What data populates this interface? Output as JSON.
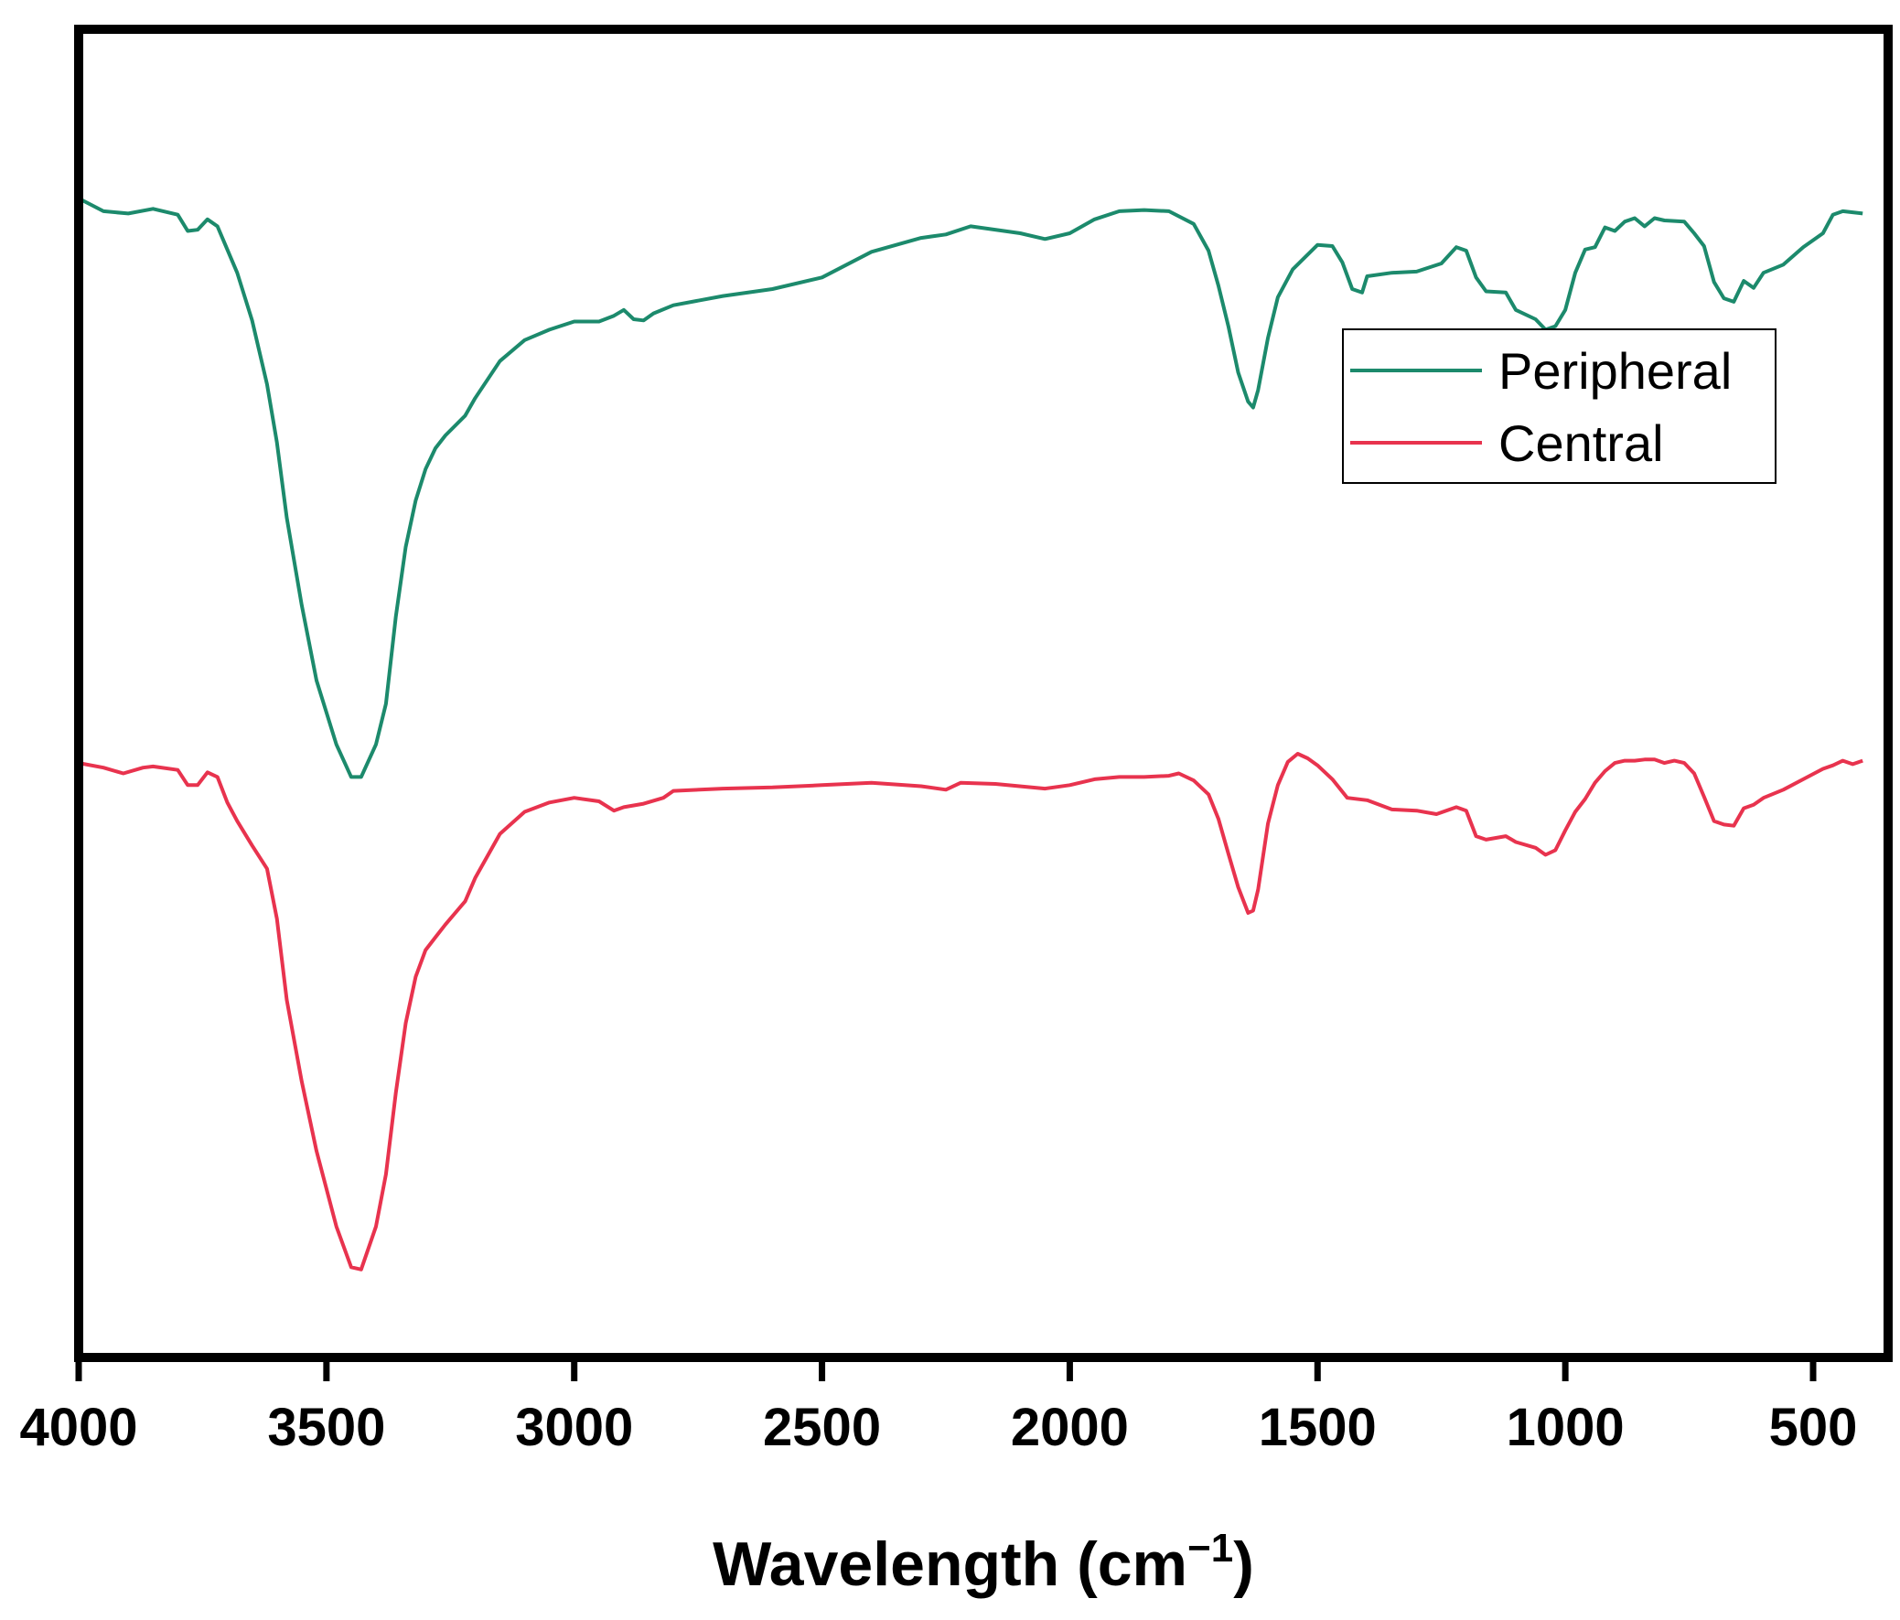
{
  "chart_data": {
    "type": "line",
    "title": "",
    "xlabel": "Wavelength (cm",
    "xlabel_sup": "−1",
    "xlabel_close": ")",
    "ylabel": "",
    "xlim": [
      4000,
      400
    ],
    "x_reversed": true,
    "ylim": [
      0,
      100
    ],
    "yticks_shown": false,
    "grid": false,
    "legend_position": "top-right",
    "xticks": [
      4000,
      3500,
      3000,
      2500,
      2000,
      1500,
      1000,
      500
    ],
    "xtick_labels": [
      "4000",
      "3500",
      "3000",
      "2500",
      "2000",
      "1500",
      "1000",
      "500"
    ],
    "series": [
      {
        "name": "Peripheral",
        "color": "#1c8a6c",
        "points": [
          [
            4000,
            93.0
          ],
          [
            3950,
            91.9
          ],
          [
            3900,
            91.7
          ],
          [
            3850,
            92.1
          ],
          [
            3800,
            91.6
          ],
          [
            3780,
            90.2
          ],
          [
            3760,
            90.3
          ],
          [
            3740,
            91.2
          ],
          [
            3720,
            90.6
          ],
          [
            3700,
            88.6
          ],
          [
            3680,
            86.6
          ],
          [
            3650,
            82.5
          ],
          [
            3620,
            77.0
          ],
          [
            3600,
            72.0
          ],
          [
            3580,
            65.5
          ],
          [
            3550,
            58.0
          ],
          [
            3520,
            51.5
          ],
          [
            3480,
            46.0
          ],
          [
            3450,
            43.2
          ],
          [
            3430,
            43.2
          ],
          [
            3400,
            46.0
          ],
          [
            3380,
            49.5
          ],
          [
            3360,
            57.0
          ],
          [
            3340,
            63.0
          ],
          [
            3320,
            67.0
          ],
          [
            3300,
            69.7
          ],
          [
            3280,
            71.5
          ],
          [
            3260,
            72.6
          ],
          [
            3220,
            74.3
          ],
          [
            3200,
            75.8
          ],
          [
            3150,
            79.0
          ],
          [
            3100,
            80.8
          ],
          [
            3050,
            81.7
          ],
          [
            3000,
            82.4
          ],
          [
            2950,
            82.4
          ],
          [
            2920,
            82.9
          ],
          [
            2900,
            83.4
          ],
          [
            2880,
            82.6
          ],
          [
            2860,
            82.5
          ],
          [
            2840,
            83.1
          ],
          [
            2800,
            83.8
          ],
          [
            2700,
            84.6
          ],
          [
            2600,
            85.2
          ],
          [
            2500,
            86.2
          ],
          [
            2400,
            88.4
          ],
          [
            2300,
            89.6
          ],
          [
            2250,
            89.9
          ],
          [
            2200,
            90.6
          ],
          [
            2100,
            90.0
          ],
          [
            2050,
            89.5
          ],
          [
            2000,
            90.0
          ],
          [
            1950,
            91.2
          ],
          [
            1900,
            91.9
          ],
          [
            1850,
            92.0
          ],
          [
            1800,
            91.9
          ],
          [
            1750,
            90.8
          ],
          [
            1720,
            88.5
          ],
          [
            1700,
            85.5
          ],
          [
            1680,
            82.0
          ],
          [
            1660,
            78.0
          ],
          [
            1640,
            75.5
          ],
          [
            1630,
            75.0
          ],
          [
            1620,
            76.5
          ],
          [
            1600,
            81.0
          ],
          [
            1580,
            84.5
          ],
          [
            1550,
            86.9
          ],
          [
            1500,
            89.0
          ],
          [
            1470,
            88.9
          ],
          [
            1450,
            87.5
          ],
          [
            1430,
            85.2
          ],
          [
            1410,
            84.9
          ],
          [
            1400,
            86.3
          ],
          [
            1350,
            86.6
          ],
          [
            1300,
            86.7
          ],
          [
            1250,
            87.4
          ],
          [
            1220,
            88.8
          ],
          [
            1200,
            88.5
          ],
          [
            1180,
            86.2
          ],
          [
            1160,
            85.0
          ],
          [
            1120,
            84.9
          ],
          [
            1100,
            83.4
          ],
          [
            1060,
            82.6
          ],
          [
            1040,
            81.7
          ],
          [
            1020,
            82.0
          ],
          [
            1000,
            83.4
          ],
          [
            980,
            86.6
          ],
          [
            960,
            88.6
          ],
          [
            940,
            88.8
          ],
          [
            920,
            90.5
          ],
          [
            900,
            90.2
          ],
          [
            880,
            91.0
          ],
          [
            860,
            91.3
          ],
          [
            840,
            90.6
          ],
          [
            820,
            91.3
          ],
          [
            800,
            91.1
          ],
          [
            760,
            91.0
          ],
          [
            740,
            90.0
          ],
          [
            720,
            88.9
          ],
          [
            700,
            85.8
          ],
          [
            680,
            84.4
          ],
          [
            660,
            84.1
          ],
          [
            640,
            85.9
          ],
          [
            620,
            85.3
          ],
          [
            600,
            86.6
          ],
          [
            560,
            87.3
          ],
          [
            520,
            88.8
          ],
          [
            480,
            90.0
          ],
          [
            460,
            91.6
          ],
          [
            440,
            91.9
          ],
          [
            420,
            91.8
          ],
          [
            400,
            91.7
          ]
        ]
      },
      {
        "name": "Central",
        "color": "#e8334e",
        "points": [
          [
            4000,
            44.4
          ],
          [
            3950,
            44.0
          ],
          [
            3910,
            43.5
          ],
          [
            3870,
            44.0
          ],
          [
            3850,
            44.1
          ],
          [
            3800,
            43.8
          ],
          [
            3780,
            42.5
          ],
          [
            3760,
            42.5
          ],
          [
            3740,
            43.6
          ],
          [
            3720,
            43.2
          ],
          [
            3700,
            41.0
          ],
          [
            3680,
            39.4
          ],
          [
            3650,
            37.3
          ],
          [
            3620,
            35.3
          ],
          [
            3600,
            31.0
          ],
          [
            3580,
            24.0
          ],
          [
            3550,
            17.0
          ],
          [
            3520,
            11.0
          ],
          [
            3480,
            4.5
          ],
          [
            3450,
            1.0
          ],
          [
            3430,
            0.8
          ],
          [
            3400,
            4.5
          ],
          [
            3380,
            9.0
          ],
          [
            3360,
            16.0
          ],
          [
            3340,
            22.0
          ],
          [
            3320,
            26.0
          ],
          [
            3300,
            28.3
          ],
          [
            3280,
            29.4
          ],
          [
            3260,
            30.5
          ],
          [
            3220,
            32.5
          ],
          [
            3200,
            34.5
          ],
          [
            3150,
            38.3
          ],
          [
            3100,
            40.2
          ],
          [
            3050,
            41.0
          ],
          [
            3000,
            41.4
          ],
          [
            2950,
            41.1
          ],
          [
            2920,
            40.3
          ],
          [
            2900,
            40.6
          ],
          [
            2860,
            40.9
          ],
          [
            2820,
            41.4
          ],
          [
            2800,
            42.0
          ],
          [
            2700,
            42.2
          ],
          [
            2600,
            42.3
          ],
          [
            2500,
            42.5
          ],
          [
            2400,
            42.7
          ],
          [
            2300,
            42.4
          ],
          [
            2250,
            42.1
          ],
          [
            2220,
            42.7
          ],
          [
            2150,
            42.6
          ],
          [
            2050,
            42.2
          ],
          [
            2000,
            42.5
          ],
          [
            1950,
            43.0
          ],
          [
            1900,
            43.2
          ],
          [
            1850,
            43.2
          ],
          [
            1800,
            43.3
          ],
          [
            1780,
            43.5
          ],
          [
            1750,
            42.9
          ],
          [
            1720,
            41.7
          ],
          [
            1700,
            39.6
          ],
          [
            1680,
            36.6
          ],
          [
            1660,
            33.7
          ],
          [
            1640,
            31.5
          ],
          [
            1630,
            31.7
          ],
          [
            1620,
            33.5
          ],
          [
            1600,
            39.2
          ],
          [
            1580,
            42.5
          ],
          [
            1560,
            44.5
          ],
          [
            1540,
            45.2
          ],
          [
            1520,
            44.8
          ],
          [
            1500,
            44.2
          ],
          [
            1470,
            43.0
          ],
          [
            1440,
            41.4
          ],
          [
            1400,
            41.2
          ],
          [
            1350,
            40.4
          ],
          [
            1300,
            40.3
          ],
          [
            1260,
            40.0
          ],
          [
            1220,
            40.6
          ],
          [
            1200,
            40.3
          ],
          [
            1180,
            38.1
          ],
          [
            1160,
            37.8
          ],
          [
            1120,
            38.1
          ],
          [
            1100,
            37.6
          ],
          [
            1060,
            37.1
          ],
          [
            1040,
            36.5
          ],
          [
            1020,
            36.9
          ],
          [
            1000,
            38.6
          ],
          [
            980,
            40.2
          ],
          [
            960,
            41.3
          ],
          [
            940,
            42.7
          ],
          [
            920,
            43.7
          ],
          [
            900,
            44.4
          ],
          [
            880,
            44.6
          ],
          [
            860,
            44.6
          ],
          [
            840,
            44.7
          ],
          [
            820,
            44.7
          ],
          [
            800,
            44.4
          ],
          [
            780,
            44.6
          ],
          [
            760,
            44.4
          ],
          [
            740,
            43.5
          ],
          [
            720,
            41.5
          ],
          [
            700,
            39.4
          ],
          [
            680,
            39.1
          ],
          [
            660,
            39.0
          ],
          [
            640,
            40.5
          ],
          [
            620,
            40.8
          ],
          [
            600,
            41.4
          ],
          [
            560,
            42.1
          ],
          [
            520,
            43.0
          ],
          [
            480,
            43.9
          ],
          [
            460,
            44.2
          ],
          [
            440,
            44.6
          ],
          [
            420,
            44.3
          ],
          [
            400,
            44.6
          ]
        ]
      }
    ]
  }
}
